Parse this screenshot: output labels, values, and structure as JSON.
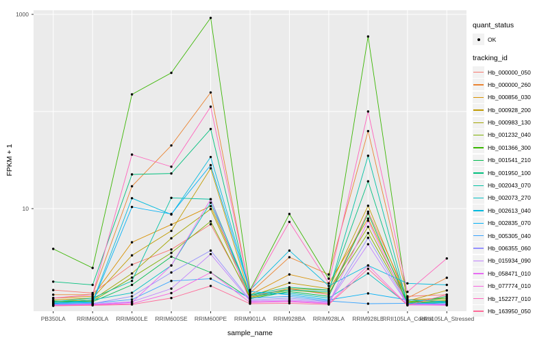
{
  "figure": {
    "x_axis_title": "sample_name",
    "y_axis_title": "FPKM + 1"
  },
  "legend": {
    "quant_status_title": "quant_status",
    "ok_label": "OK",
    "tracking_id_title": "tracking_id"
  },
  "chart_data": {
    "type": "line",
    "title": "",
    "xlabel": "sample_name",
    "ylabel": "FPKM + 1",
    "y_scale": "log10",
    "ylim": [
      0.88,
      1100
    ],
    "y_ticks": [
      1000,
      10
    ],
    "y_tick_labels": [
      "1000",
      "10"
    ],
    "y_gridlines": [
      1000,
      100,
      10
    ],
    "grid": true,
    "legend_position": "right",
    "panel_bg": "#EBEBEB",
    "grid_color": "#FFFFFF",
    "point_color": "#000000",
    "tick_color": "#333333",
    "categories": [
      "PB350LA",
      "RRIM600LA",
      "RRIM600LE",
      "RRIM600SE",
      "RRIM600PE",
      "RRIM901LA",
      "RRIM928BA",
      "RRIM928LA",
      "RRIM928LE",
      "RRII105LA_Control",
      "RRII105LA_Stressed"
    ],
    "series": [
      {
        "name": "Hb_000000_050",
        "color": "#F8766D",
        "values": [
          1.45,
          1.35,
          2.65,
          3.8,
          6.9,
          1.25,
          1.5,
          1.3,
          9.3,
          1.25,
          1.3
        ]
      },
      {
        "name": "Hb_000000_260",
        "color": "#EA8331",
        "values": [
          1.3,
          1.3,
          17,
          44.7,
          157,
          1.35,
          3.16,
          2.1,
          62.8,
          1.2,
          1.94
        ]
      },
      {
        "name": "Hb_000856_030",
        "color": "#D89000",
        "values": [
          1.2,
          1.25,
          4.5,
          6.85,
          10.6,
          1.29,
          2.1,
          1.7,
          7.9,
          1.15,
          1.2
        ]
      },
      {
        "name": "Hb_000928_200",
        "color": "#C09B00",
        "values": [
          1.15,
          1.2,
          3.3,
          5.9,
          26,
          1.25,
          1.72,
          1.5,
          10.7,
          1.12,
          1.44
        ]
      },
      {
        "name": "Hb_000983_130",
        "color": "#A3A500",
        "values": [
          1.1,
          1.15,
          2.15,
          4.95,
          9.9,
          1.22,
          1.5,
          1.45,
          6.5,
          1.1,
          1.15
        ]
      },
      {
        "name": "Hb_001232_040",
        "color": "#7CAE00",
        "values": [
          1.08,
          1.12,
          1.95,
          3.5,
          7.4,
          1.2,
          1.45,
          1.35,
          5.6,
          1.08,
          1.12
        ]
      },
      {
        "name": "Hb_001366_300",
        "color": "#39B600",
        "values": [
          3.85,
          2.45,
          150,
          250,
          920,
          1.45,
          8.8,
          1.9,
          592,
          1.1,
          1.2
        ]
      },
      {
        "name": "Hb_001541_210",
        "color": "#00BB4E",
        "values": [
          1.12,
          1.1,
          1.64,
          3.2,
          2.2,
          1.18,
          1.4,
          1.25,
          8.9,
          1.06,
          1.1
        ]
      },
      {
        "name": "Hb_001950_100",
        "color": "#00BF7D",
        "values": [
          1.77,
          1.64,
          22.5,
          23,
          66,
          1.3,
          1.55,
          1.45,
          19.1,
          1.05,
          1.25
        ]
      },
      {
        "name": "Hb_002043_070",
        "color": "#00C1A3",
        "values": [
          1.1,
          1.2,
          1.8,
          12.9,
          12.5,
          1.3,
          1.45,
          1.4,
          35,
          1.05,
          1.1
        ]
      },
      {
        "name": "Hb_002073_270",
        "color": "#00BFC4",
        "values": [
          1.05,
          1.15,
          1.36,
          2.6,
          11.5,
          1.28,
          1.35,
          1.2,
          2.15,
          1.04,
          1.08
        ]
      },
      {
        "name": "Hb_002613_040",
        "color": "#00BADE",
        "values": [
          1.08,
          1.1,
          12.8,
          8.7,
          34,
          1.45,
          3.7,
          1.6,
          2.6,
          1.7,
          1.64
        ]
      },
      {
        "name": "Hb_002835_070",
        "color": "#00B0F6",
        "values": [
          1.06,
          1.08,
          10.4,
          8.8,
          28,
          1.4,
          1.3,
          1.15,
          1.34,
          1.15,
          1.1
        ]
      },
      {
        "name": "Hb_005305_040",
        "color": "#35A2FF",
        "values": [
          1.04,
          1.06,
          1.16,
          1.8,
          1.9,
          1.2,
          1.25,
          1.12,
          1.05,
          1.06,
          1.05
        ]
      },
      {
        "name": "Hb_006355_060",
        "color": "#9590FF",
        "values": [
          1.03,
          1.05,
          1.25,
          2.2,
          3.7,
          1.15,
          1.2,
          1.1,
          5.0,
          1.04,
          1.04
        ]
      },
      {
        "name": "Hb_015934_090",
        "color": "#BF80FF",
        "values": [
          1.02,
          1.04,
          1.1,
          1.5,
          3.4,
          1.12,
          1.15,
          1.08,
          4.3,
          1.03,
          1.03
        ]
      },
      {
        "name": "Hb_058471_010",
        "color": "#E76BF3",
        "values": [
          1.01,
          1.03,
          1.08,
          2.6,
          12.5,
          1.1,
          1.12,
          1.06,
          7.5,
          1.02,
          1.02
        ]
      },
      {
        "name": "Hb_077774_010",
        "color": "#F763E0",
        "values": [
          1.0,
          1.02,
          1.05,
          1.35,
          2.2,
          1.08,
          1.1,
          1.05,
          2.6,
          1.02,
          1.01
        ]
      },
      {
        "name": "Hb_152277_010",
        "color": "#FF62BC",
        "values": [
          1.2,
          1.3,
          36,
          27,
          112,
          1.4,
          7.3,
          1.7,
          100,
          1.39,
          3.07
        ]
      },
      {
        "name": "Hb_163950_050",
        "color": "#FF6A98",
        "values": [
          1.0,
          1.01,
          1.03,
          1.2,
          1.6,
          1.05,
          1.06,
          1.03,
          2.4,
          1.01,
          1.3
        ]
      }
    ]
  }
}
